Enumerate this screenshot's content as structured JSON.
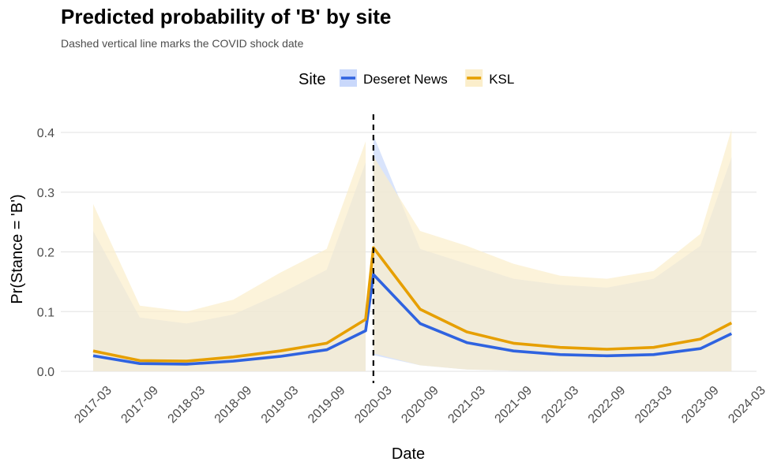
{
  "chart_data": {
    "type": "line",
    "title": "Predicted probability of 'B' by site",
    "subtitle": "Dashed vertical line marks the COVID shock date",
    "xlabel": "Date",
    "ylabel": "Pr(Stance = 'B')",
    "x_range": [
      "2017-03",
      "2024-03"
    ],
    "ylim": [
      0,
      0.42
    ],
    "y_ticks": [
      0.0,
      0.1,
      0.2,
      0.3,
      0.4
    ],
    "y_tick_labels": [
      "0.0",
      "0.1",
      "0.2",
      "0.3",
      "0.4"
    ],
    "x_ticks": [
      "2017-03",
      "2017-09",
      "2018-03",
      "2018-09",
      "2019-03",
      "2019-09",
      "2020-03",
      "2020-09",
      "2021-03",
      "2021-09",
      "2022-03",
      "2022-09",
      "2023-03",
      "2023-09",
      "2024-03"
    ],
    "shock_date": "2020-03",
    "grid": true,
    "legend": {
      "title": "Site",
      "position": "top"
    },
    "series": [
      {
        "name": "Deseret News",
        "color": "#2f63e0",
        "ribbon_color": "#c9d8fb",
        "x": [
          "2017-03",
          "2017-09",
          "2018-03",
          "2018-09",
          "2019-03",
          "2019-09",
          "2020-02",
          "2020-03",
          "2020-09",
          "2021-03",
          "2021-09",
          "2022-03",
          "2022-09",
          "2023-03",
          "2023-09",
          "2024-01"
        ],
        "values": [
          0.026,
          0.013,
          0.012,
          0.017,
          0.025,
          0.036,
          0.068,
          0.162,
          0.08,
          0.048,
          0.034,
          0.028,
          0.026,
          0.028,
          0.038,
          0.063
        ],
        "lower": [
          0.0,
          0.0,
          0.0,
          0.0,
          0.0,
          0.0,
          0.0,
          0.027,
          0.01,
          0.003,
          0.001,
          0.0,
          0.0,
          0.0,
          0.0,
          0.0
        ],
        "upper": [
          0.235,
          0.09,
          0.08,
          0.095,
          0.13,
          0.17,
          0.35,
          0.395,
          0.205,
          0.18,
          0.155,
          0.145,
          0.14,
          0.155,
          0.21,
          0.358
        ]
      },
      {
        "name": "KSL",
        "color": "#e69f00",
        "ribbon_color": "#fbeecb",
        "x": [
          "2017-03",
          "2017-09",
          "2018-03",
          "2018-09",
          "2019-03",
          "2019-09",
          "2020-02",
          "2020-03",
          "2020-09",
          "2021-03",
          "2021-09",
          "2022-03",
          "2022-09",
          "2023-03",
          "2023-09",
          "2024-01"
        ],
        "values": [
          0.034,
          0.018,
          0.017,
          0.024,
          0.034,
          0.047,
          0.087,
          0.207,
          0.104,
          0.066,
          0.047,
          0.04,
          0.037,
          0.04,
          0.054,
          0.081
        ],
        "lower": [
          0.0,
          0.0,
          0.0,
          0.0,
          0.0,
          0.0,
          0.0,
          0.03,
          0.01,
          0.003,
          0.001,
          0.0,
          0.0,
          0.0,
          0.0,
          0.0
        ],
        "upper": [
          0.28,
          0.11,
          0.1,
          0.12,
          0.165,
          0.205,
          0.385,
          0.36,
          0.235,
          0.21,
          0.18,
          0.16,
          0.155,
          0.168,
          0.23,
          0.405
        ]
      }
    ]
  }
}
